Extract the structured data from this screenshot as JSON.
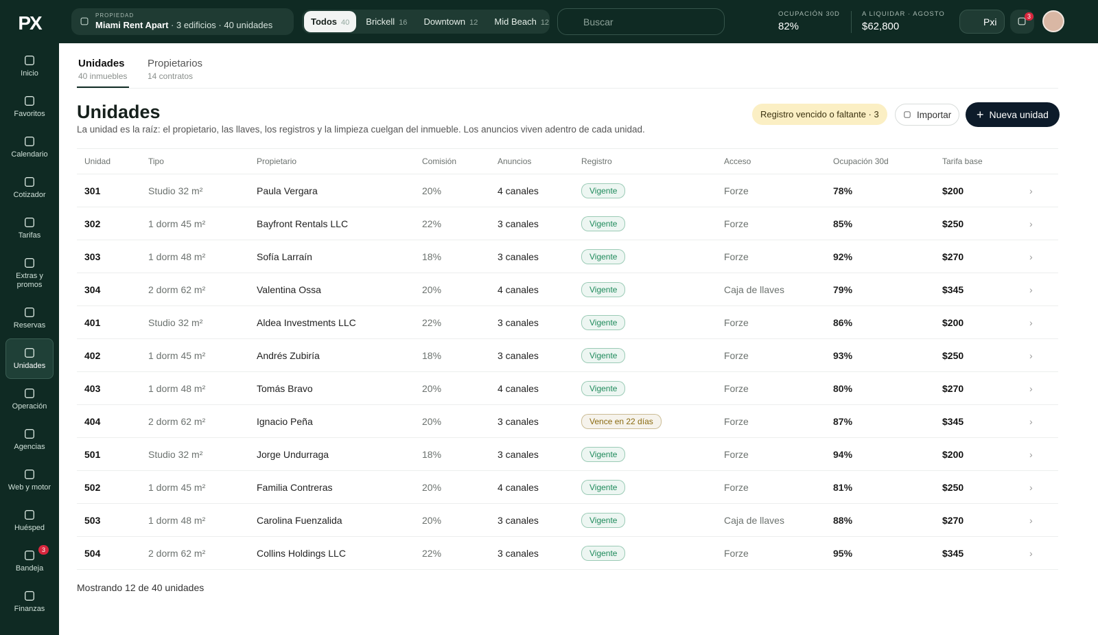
{
  "logo": "PX",
  "sidebar": {
    "items": [
      {
        "label": "Inicio"
      },
      {
        "label": "Favoritos"
      },
      {
        "label": "Calendario"
      },
      {
        "label": "Cotizador"
      },
      {
        "label": "Tarifas"
      },
      {
        "label": "Extras y promos"
      },
      {
        "label": "Reservas"
      },
      {
        "label": "Unidades",
        "active": true
      },
      {
        "label": "Operación"
      },
      {
        "label": "Agencias"
      },
      {
        "label": "Web y motor"
      },
      {
        "label": "Huésped"
      },
      {
        "label": "Bandeja",
        "badge": 3
      },
      {
        "label": "Finanzas"
      }
    ]
  },
  "topbar": {
    "property": {
      "caption": "PROPIEDAD",
      "name": "Miami Rent Apart",
      "detail": "· 3 edificios · 40 unidades"
    },
    "filters": [
      {
        "label": "Todos",
        "count": 40,
        "active": true
      },
      {
        "label": "Brickell",
        "count": 16
      },
      {
        "label": "Downtown",
        "count": 12
      },
      {
        "label": "Mid Beach",
        "count": 12
      }
    ],
    "search": "Buscar",
    "stats": [
      {
        "label": "OCUPACIÓN 30D",
        "value": "82%"
      },
      {
        "label": "A LIQUIDAR · AGOSTO",
        "value": "$62,800"
      }
    ],
    "assistant": "Pxi",
    "notifications": 3
  },
  "tabs": [
    {
      "label": "Unidades",
      "sub": "40 inmuebles",
      "active": true
    },
    {
      "label": "Propietarios",
      "sub": "14 contratos"
    }
  ],
  "header": {
    "title": "Unidades",
    "description": "La unidad es la raíz: el propietario, las llaves, los registros y la limpieza cuelgan del inmueble. Los anuncios viven adentro de cada unidad.",
    "alert": "Registro vencido o faltante · 3",
    "import": "Importar",
    "new": "Nueva unidad"
  },
  "table": {
    "columns": [
      "Unidad",
      "Tipo",
      "Propietario",
      "Comisión",
      "Anuncios",
      "Registro",
      "Acceso",
      "Ocupación 30d",
      "Tarifa base"
    ],
    "rows": [
      [
        "301",
        "Studio 32 m²",
        "Paula Vergara",
        "20%",
        "4 canales",
        {
          "text": "Vigente",
          "color": "#1f8a5b"
        },
        "Forze",
        "78%",
        "$200"
      ],
      [
        "302",
        "1 dorm 45 m²",
        "Bayfront Rentals LLC",
        "22%",
        "3 canales",
        {
          "text": "Vigente",
          "color": "#1f8a5b"
        },
        "Forze",
        "85%",
        "$250"
      ],
      [
        "303",
        "1 dorm 48 m²",
        "Sofía Larraín",
        "18%",
        "3 canales",
        {
          "text": "Vigente",
          "color": "#1f8a5b"
        },
        "Forze",
        "92%",
        "$270"
      ],
      [
        "304",
        "2 dorm 62 m²",
        "Valentina Ossa",
        "20%",
        "4 canales",
        {
          "text": "Vigente",
          "color": "#1f8a5b"
        },
        "Caja de llaves",
        "79%",
        "$345"
      ],
      [
        "401",
        "Studio 32 m²",
        "Aldea Investments LLC",
        "22%",
        "3 canales",
        {
          "text": "Vigente",
          "color": "#1f8a5b"
        },
        "Forze",
        "86%",
        "$200"
      ],
      [
        "402",
        "1 dorm 45 m²",
        "Andrés Zubiría",
        "18%",
        "3 canales",
        {
          "text": "Vigente",
          "color": "#1f8a5b"
        },
        "Forze",
        "93%",
        "$250"
      ],
      [
        "403",
        "1 dorm 48 m²",
        "Tomás Bravo",
        "20%",
        "4 canales",
        {
          "text": "Vigente",
          "color": "#1f8a5b"
        },
        "Forze",
        "80%",
        "$270"
      ],
      [
        "404",
        "2 dorm 62 m²",
        "Ignacio Peña",
        "20%",
        "3 canales",
        {
          "text": "Vence en 22 días",
          "color": "#8a6a10"
        },
        "Forze",
        "87%",
        "$345"
      ],
      [
        "501",
        "Studio 32 m²",
        "Jorge Undurraga",
        "18%",
        "3 canales",
        {
          "text": "Vigente",
          "color": "#1f8a5b"
        },
        "Forze",
        "94%",
        "$200"
      ],
      [
        "502",
        "1 dorm 45 m²",
        "Familia Contreras",
        "20%",
        "4 canales",
        {
          "text": "Vigente",
          "color": "#1f8a5b"
        },
        "Forze",
        "81%",
        "$250"
      ],
      [
        "503",
        "1 dorm 48 m²",
        "Carolina Fuenzalida",
        "20%",
        "3 canales",
        {
          "text": "Vigente",
          "color": "#1f8a5b"
        },
        "Caja de llaves",
        "88%",
        "$270"
      ],
      [
        "504",
        "2 dorm 62 m²",
        "Collins Holdings LLC",
        "22%",
        "3 canales",
        {
          "text": "Vigente",
          "color": "#1f8a5b"
        },
        "Forze",
        "95%",
        "$345"
      ]
    ]
  },
  "footer": "Mostrando 12 de 40 unidades"
}
